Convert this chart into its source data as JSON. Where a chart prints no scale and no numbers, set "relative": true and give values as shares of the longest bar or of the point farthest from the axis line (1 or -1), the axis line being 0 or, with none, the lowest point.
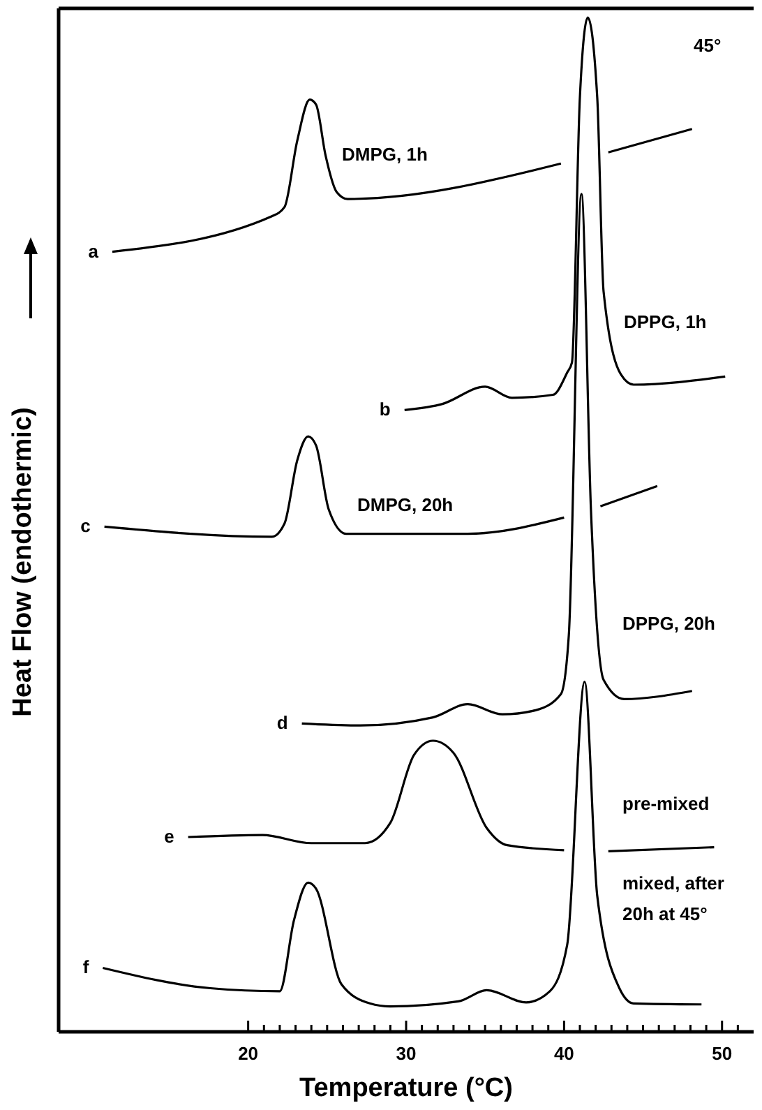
{
  "chart_data": {
    "type": "line",
    "relative": true,
    "xlabel": "Temperature (°C)",
    "ylabel": "Heat Flow (endothermic)",
    "xlim": [
      8,
      52
    ],
    "xticks": [
      20,
      {
        "value": 21,
        "label": null
      },
      {
        "value": 22,
        "label": null
      },
      {
        "value": 23,
        "label": null
      },
      {
        "value": 24,
        "label": null
      },
      {
        "value": 25,
        "label": null
      },
      {
        "value": 26,
        "label": null
      },
      {
        "value": 27,
        "label": null
      },
      {
        "value": 28,
        "label": null
      },
      {
        "value": 29,
        "label": null
      },
      30,
      {
        "value": 31,
        "label": null
      },
      {
        "value": 32,
        "label": null
      },
      {
        "value": 33,
        "label": null
      },
      {
        "value": 34,
        "label": null
      },
      {
        "value": 35,
        "label": null
      },
      {
        "value": 36,
        "label": null
      },
      {
        "value": 37,
        "label": null
      },
      {
        "value": 38,
        "label": null
      },
      {
        "value": 39,
        "label": null
      },
      40,
      {
        "value": 41,
        "label": null
      },
      {
        "value": 42,
        "label": null
      },
      {
        "value": 43,
        "label": null
      },
      {
        "value": 44,
        "label": null
      },
      {
        "value": 45,
        "label": null
      },
      {
        "value": 46,
        "label": null
      },
      {
        "value": 47,
        "label": null
      },
      {
        "value": 48,
        "label": null
      },
      {
        "value": 49,
        "label": null
      },
      50,
      {
        "value": 51,
        "label": null
      }
    ],
    "tick_labels": "x",
    "grid": false,
    "legend": false,
    "marker": "none",
    "line_style": "solid",
    "series": [
      {
        "name": "a",
        "color": "#000000",
        "x": [
          11.4,
          21.5,
          22.3,
          23.1,
          23.9,
          24.3,
          24.9,
          25.6,
          26.3,
          39.8,
          41,
          42.8,
          48.1
        ],
        "values": [
          0.769,
          0.804,
          0.813,
          0.878,
          0.919,
          0.914,
          0.864,
          0.828,
          0.821,
          0.856,
          null,
          0.867,
          0.89
        ]
      },
      {
        "name": "b",
        "color": "#000000",
        "x": [
          29.9,
          32.3,
          35.0,
          36.7,
          39.3,
          40.2,
          40.5,
          41.0,
          41.5,
          42.1,
          42.5,
          43.6,
          44.4,
          50.2
        ],
        "values": [
          0.613,
          0.619,
          0.636,
          0.625,
          0.628,
          0.65,
          0.66,
          0.921,
          1.0,
          0.921,
          0.73,
          0.648,
          0.638,
          0.646
        ]
      },
      {
        "name": "c",
        "color": "#000000",
        "x": [
          10.9,
          21.5,
          22.3,
          23.1,
          23.8,
          24.3,
          25.1,
          26.2,
          33.9,
          40.0,
          41,
          42.3,
          45.9
        ],
        "values": [
          0.498,
          0.488,
          0.501,
          0.563,
          0.587,
          0.578,
          0.515,
          0.491,
          0.491,
          0.507,
          null,
          0.518,
          0.538
        ]
      },
      {
        "name": "d",
        "color": "#000000",
        "x": [
          23.4,
          27.1,
          31.7,
          33.9,
          36.1,
          38.2,
          39.8,
          40.3,
          41.1,
          41.7,
          42.5,
          43.8,
          48.1
        ],
        "values": [
          0.304,
          0.302,
          0.31,
          0.323,
          0.313,
          0.317,
          0.333,
          0.391,
          0.826,
          0.515,
          0.347,
          0.328,
          0.336
        ]
      },
      {
        "name": "e",
        "color": "#000000",
        "x": [
          16.2,
          20.9,
          24.0,
          27.4,
          29.0,
          30.5,
          31.7,
          33.0,
          35.1,
          36.4,
          40.0,
          41,
          42.8,
          49.5
        ],
        "values": [
          0.192,
          0.194,
          0.186,
          0.186,
          0.206,
          0.273,
          0.287,
          0.275,
          0.201,
          0.184,
          0.179,
          null,
          0.178,
          0.182
        ]
      },
      {
        "name": "f",
        "color": "#000000",
        "x": [
          10.8,
          17.6,
          22.0,
          22.9,
          23.8,
          24.3,
          25.9,
          27.7,
          29.0,
          33.3,
          35.1,
          37.6,
          39.1,
          40.2,
          41.3,
          42.1,
          43.5,
          44.4,
          48.7
        ],
        "values": [
          0.063,
          0.043,
          0.04,
          0.11,
          0.147,
          0.141,
          0.047,
          0.028,
          0.025,
          0.03,
          0.041,
          0.029,
          0.04,
          0.086,
          0.345,
          0.134,
          0.043,
          0.028,
          0.027
        ]
      }
    ],
    "annotations": [
      "45°",
      "DMPG, 1h",
      "DPPG, 1h",
      "DMPG, 20h",
      "DPPG, 20h",
      "pre-mixed",
      "mixed, after\n20h at 45°"
    ]
  }
}
